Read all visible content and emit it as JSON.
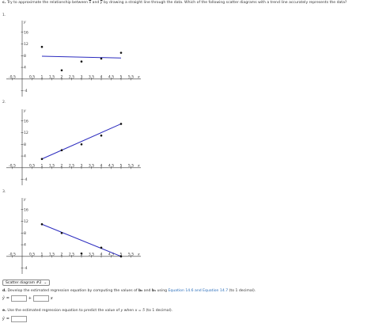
{
  "question_c": {
    "label": "c.",
    "text_before": "Try to approximate the relationship between ",
    "x_var": "x",
    "and": " and ",
    "y_var": "y",
    "text_after": " by drawing a straight line through the data. Which of the following scatter diagrams with a trend line accurately represents the data?"
  },
  "options": [
    {
      "number": "1."
    },
    {
      "number": "2."
    },
    {
      "number": "3."
    }
  ],
  "chart_data": [
    {
      "type": "scatter",
      "ylabel": "y",
      "xlabel": "x",
      "x_ticks": [
        "-0.5",
        "0.5",
        "1",
        "1.5",
        "2",
        "2.5",
        "3",
        "3.5",
        "4",
        "4.5",
        "5",
        "5.5"
      ],
      "y_ticks": [
        "-4",
        "4",
        "8",
        "12",
        "16"
      ],
      "xlim": [
        -0.8,
        6
      ],
      "ylim": [
        -6,
        20
      ],
      "points": [
        [
          1,
          11
        ],
        [
          2,
          3
        ],
        [
          3,
          6
        ],
        [
          4,
          7
        ],
        [
          5,
          9
        ]
      ],
      "trend_line": [
        [
          1,
          7.8
        ],
        [
          5,
          7.2
        ]
      ],
      "colors": {
        "points": "#111111",
        "line": "#2b2bbf"
      }
    },
    {
      "type": "scatter",
      "ylabel": "y",
      "xlabel": "x",
      "x_ticks": [
        "-0.5",
        "0.5",
        "1",
        "1.5",
        "2",
        "2.5",
        "3",
        "3.5",
        "4",
        "4.5",
        "5",
        "5.5"
      ],
      "y_ticks": [
        "-4",
        "4",
        "8",
        "12",
        "16"
      ],
      "xlim": [
        -0.8,
        6
      ],
      "ylim": [
        -6,
        20
      ],
      "points": [
        [
          1,
          3
        ],
        [
          2,
          6
        ],
        [
          3,
          8
        ],
        [
          4,
          11
        ],
        [
          5,
          15
        ]
      ],
      "trend_line": [
        [
          1,
          3
        ],
        [
          5,
          15
        ]
      ],
      "colors": {
        "points": "#111111",
        "line": "#2b2bbf"
      }
    },
    {
      "type": "scatter",
      "ylabel": "y",
      "xlabel": "x",
      "x_ticks": [
        "-0.5",
        "0.5",
        "1",
        "1.5",
        "2",
        "2.5",
        "3",
        "3.5",
        "4",
        "4.5",
        "5",
        "5.5"
      ],
      "y_ticks": [
        "-4",
        "4",
        "8",
        "12",
        "16"
      ],
      "xlim": [
        -0.8,
        6
      ],
      "ylim": [
        -6,
        20
      ],
      "points": [
        [
          1,
          11
        ],
        [
          2,
          8
        ],
        [
          3,
          1
        ],
        [
          4,
          3
        ],
        [
          5,
          0
        ]
      ],
      "trend_line": [
        [
          1,
          11
        ],
        [
          5,
          0
        ]
      ],
      "colors": {
        "points": "#111111",
        "line": "#2b2bbf"
      }
    }
  ],
  "dropdown": {
    "selected": "Scatter diagram #2"
  },
  "question_d": {
    "label": "d.",
    "text_before": "Develop the estimated regression equation by computing the values of ",
    "b0": "b₀",
    "and": " and ",
    "b1": "b₁",
    "using": " using ",
    "link": "Equation 14.6 and Equation 14.7",
    "text_after": " (to 1 decimal)."
  },
  "equation_d": {
    "yhat": "ŷ",
    "equals": "=",
    "plus": "+",
    "x": "x"
  },
  "question_e": {
    "label": "e.",
    "text_before": "Use the estimated regression equation to predict the value of ",
    "y_var": "y",
    "when": " when ",
    "condition": "x = 5",
    "text_after": " (to 1 decimal)."
  },
  "equation_e": {
    "yhat": "ŷ",
    "equals": "="
  }
}
